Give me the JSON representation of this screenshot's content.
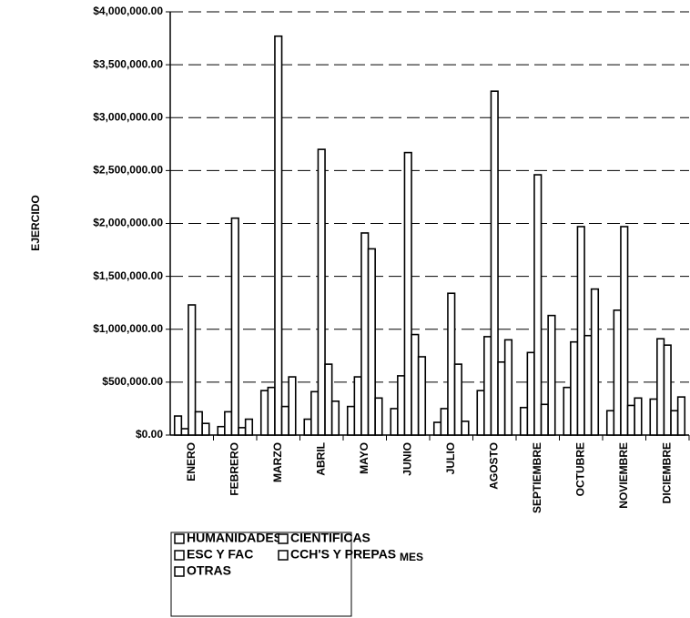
{
  "chart_data": {
    "type": "bar",
    "y_label": "EJERCIDO",
    "x_label": "MES",
    "categories": [
      "ENERO",
      "FEBRERO",
      "MARZO",
      "ABRIL",
      "MAYO",
      "JUNIO",
      "JULIO",
      "AGOSTO",
      "SEPTIEMBRE",
      "OCTUBRE",
      "NOVIEMBRE",
      "DICIEMBRE"
    ],
    "series": [
      {
        "name": "HUMANIDADES",
        "color": "#ffffff",
        "values": [
          180000,
          80000,
          420000,
          150000,
          270000,
          250000,
          120000,
          420000,
          260000,
          450000,
          230000,
          340000
        ]
      },
      {
        "name": "CIENTIFICAS",
        "color": "#ffffff",
        "values": [
          60000,
          220000,
          450000,
          410000,
          550000,
          560000,
          250000,
          930000,
          780000,
          880000,
          1180000,
          910000
        ]
      },
      {
        "name": "ESC Y FAC",
        "color": "#ffffff",
        "values": [
          1230000,
          2050000,
          3770000,
          2700000,
          1910000,
          2670000,
          1340000,
          3250000,
          2460000,
          1970000,
          1970000,
          850000
        ]
      },
      {
        "name": "CCH'S Y PREPAS",
        "color": "#ffffff",
        "values": [
          220000,
          70000,
          270000,
          670000,
          1760000,
          950000,
          670000,
          690000,
          290000,
          940000,
          280000,
          230000
        ]
      },
      {
        "name": "OTRAS",
        "color": "#ffffff",
        "values": [
          110000,
          150000,
          550000,
          320000,
          350000,
          740000,
          130000,
          900000,
          1130000,
          1380000,
          350000,
          360000
        ]
      }
    ],
    "ylim": [
      0,
      4000000
    ],
    "yticks": [
      {
        "value": 0,
        "label": "$0.00"
      },
      {
        "value": 500000,
        "label": "$500,000.00"
      },
      {
        "value": 1000000,
        "label": "$1,000,000.00"
      },
      {
        "value": 1500000,
        "label": "$1,500,000.00"
      },
      {
        "value": 2000000,
        "label": "$2,000,000.00"
      },
      {
        "value": 2500000,
        "label": "$2,500,000.00"
      },
      {
        "value": 3000000,
        "label": "$3,000,000.00"
      },
      {
        "value": 3500000,
        "label": "$3,500,000.00"
      },
      {
        "value": 4000000,
        "label": "$4,000,000.00"
      }
    ],
    "grid": true
  }
}
